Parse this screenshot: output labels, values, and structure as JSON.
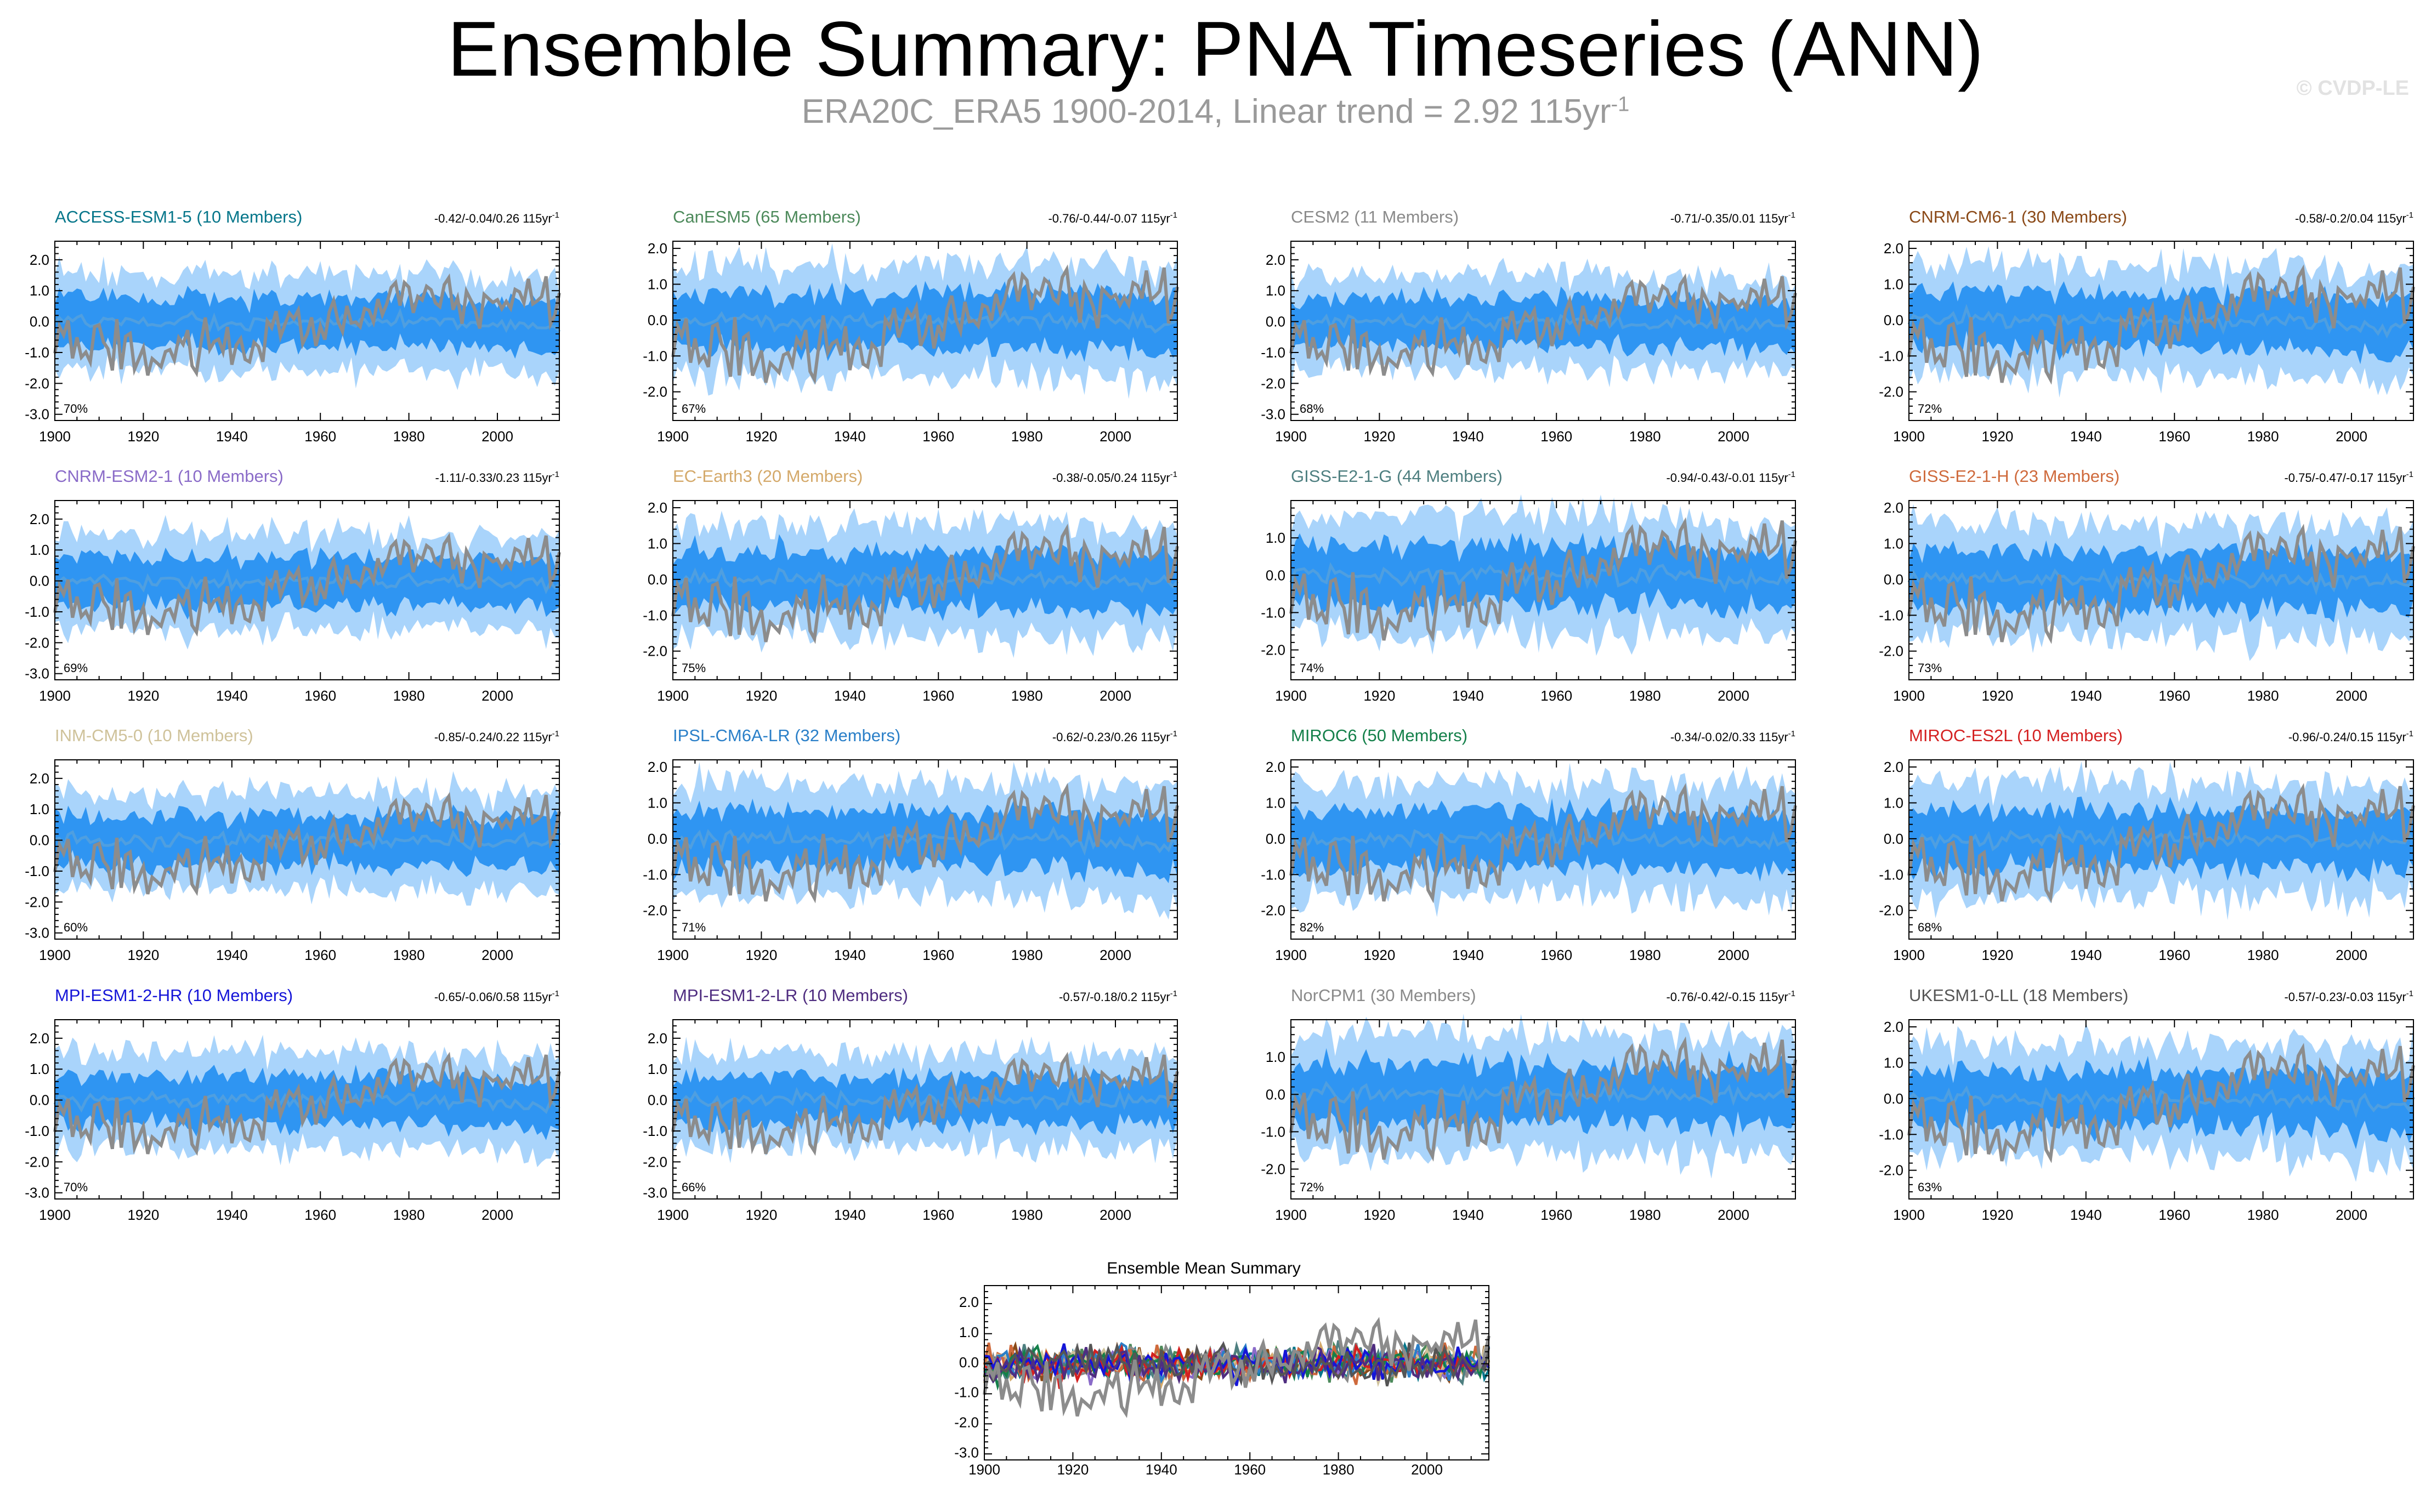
{
  "title": "Ensemble Summary: PNA Timeseries (ANN)",
  "subtitle": {
    "text": "ERA20C_ERA5 1900-2014, Linear trend = 2.92 115yr",
    "sup": "-1"
  },
  "watermark": "© CVDP-LE",
  "colors": {
    "band_outer": "#a9d4fb",
    "band_inner": "#2f95f2",
    "mean": "#4f9fe0",
    "obs": "#8c8c8c"
  },
  "chart_data": {
    "type": "line",
    "x_range": [
      1900,
      2014
    ],
    "x_ticks": [
      1900,
      1920,
      1940,
      1960,
      1980,
      2000
    ],
    "panels": [
      {
        "model": "ACCESS-ESM1-5 (10 Members)",
        "color": "#06768a",
        "trend": "-0.42/-0.04/0.26 115yr",
        "pct": "70%",
        "ylim": [
          -3.2,
          2.6
        ],
        "yticks": [
          "2.0",
          "1.0",
          "0.0",
          "-1.0",
          "-2.0",
          "-3.0"
        ]
      },
      {
        "model": "CanESM5 (65 Members)",
        "color": "#4d8a5b",
        "trend": "-0.76/-0.44/-0.07 115yr",
        "pct": "67%",
        "ylim": [
          -2.8,
          2.2
        ],
        "yticks": [
          "2.0",
          "1.0",
          "0.0",
          "-1.0",
          "-2.0"
        ]
      },
      {
        "model": "CESM2 (11 Members)",
        "color": "#8a8a8a",
        "trend": "-0.71/-0.35/0.01 115yr",
        "pct": "68%",
        "ylim": [
          -3.2,
          2.6
        ],
        "yticks": [
          "2.0",
          "1.0",
          "0.0",
          "-1.0",
          "-2.0",
          "-3.0"
        ]
      },
      {
        "model": "CNRM-CM6-1 (30 Members)",
        "color": "#8b4a18",
        "trend": "-0.58/-0.2/0.04 115yr",
        "pct": "72%",
        "ylim": [
          -2.8,
          2.2
        ],
        "yticks": [
          "2.0",
          "1.0",
          "0.0",
          "-1.0",
          "-2.0"
        ]
      },
      {
        "model": "CNRM-ESM2-1 (10 Members)",
        "color": "#8a6bc8",
        "trend": "-1.11/-0.33/0.23 115yr",
        "pct": "69%",
        "ylim": [
          -3.2,
          2.6
        ],
        "yticks": [
          "2.0",
          "1.0",
          "0.0",
          "-1.0",
          "-2.0",
          "-3.0"
        ]
      },
      {
        "model": "EC-Earth3 (20 Members)",
        "color": "#d4a96a",
        "trend": "-0.38/-0.05/0.24 115yr",
        "pct": "75%",
        "ylim": [
          -2.8,
          2.2
        ],
        "yticks": [
          "2.0",
          "1.0",
          "0.0",
          "-1.0",
          "-2.0"
        ]
      },
      {
        "model": "GISS-E2-1-G (44 Members)",
        "color": "#4e7f80",
        "trend": "-0.94/-0.43/-0.01 115yr",
        "pct": "74%",
        "ylim": [
          -2.8,
          2.0
        ],
        "yticks": [
          "1.0",
          "0.0",
          "-1.0",
          "-2.0"
        ]
      },
      {
        "model": "GISS-E2-1-H (23 Members)",
        "color": "#cf6a3c",
        "trend": "-0.75/-0.47/-0.17 115yr",
        "pct": "73%",
        "ylim": [
          -2.8,
          2.2
        ],
        "yticks": [
          "2.0",
          "1.0",
          "0.0",
          "-1.0",
          "-2.0"
        ]
      },
      {
        "model": "INM-CM5-0 (10 Members)",
        "color": "#cfc29a",
        "trend": "-0.85/-0.24/0.22 115yr",
        "pct": "60%",
        "ylim": [
          -3.2,
          2.6
        ],
        "yticks": [
          "2.0",
          "1.0",
          "0.0",
          "-1.0",
          "-2.0",
          "-3.0"
        ]
      },
      {
        "model": "IPSL-CM6A-LR (32 Members)",
        "color": "#2a7fc8",
        "trend": "-0.62/-0.23/0.26 115yr",
        "pct": "71%",
        "ylim": [
          -2.8,
          2.2
        ],
        "yticks": [
          "2.0",
          "1.0",
          "0.0",
          "-1.0",
          "-2.0"
        ]
      },
      {
        "model": "MIROC6 (50 Members)",
        "color": "#14804a",
        "trend": "-0.34/-0.02/0.33 115yr",
        "pct": "82%",
        "ylim": [
          -2.8,
          2.2
        ],
        "yticks": [
          "2.0",
          "1.0",
          "0.0",
          "-1.0",
          "-2.0"
        ]
      },
      {
        "model": "MIROC-ES2L (10 Members)",
        "color": "#d42020",
        "trend": "-0.96/-0.24/0.15 115yr",
        "pct": "68%",
        "ylim": [
          -2.8,
          2.2
        ],
        "yticks": [
          "2.0",
          "1.0",
          "0.0",
          "-1.0",
          "-2.0"
        ]
      },
      {
        "model": "MPI-ESM1-2-HR (10 Members)",
        "color": "#1515d8",
        "trend": "-0.65/-0.06/0.58 115yr",
        "pct": "70%",
        "ylim": [
          -3.2,
          2.6
        ],
        "yticks": [
          "2.0",
          "1.0",
          "0.0",
          "-1.0",
          "-2.0",
          "-3.0"
        ]
      },
      {
        "model": "MPI-ESM1-2-LR (10 Members)",
        "color": "#4f2d80",
        "trend": "-0.57/-0.18/0.2 115yr",
        "pct": "66%",
        "ylim": [
          -3.2,
          2.6
        ],
        "yticks": [
          "2.0",
          "1.0",
          "0.0",
          "-1.0",
          "-2.0",
          "-3.0"
        ]
      },
      {
        "model": "NorCPM1 (30 Members)",
        "color": "#8a8a8a",
        "trend": "-0.76/-0.42/-0.15 115yr",
        "pct": "72%",
        "ylim": [
          -2.8,
          2.0
        ],
        "yticks": [
          "1.0",
          "0.0",
          "-1.0",
          "-2.0"
        ]
      },
      {
        "model": "UKESM1-0-LL (18 Members)",
        "color": "#555555",
        "trend": "-0.57/-0.23/-0.03 115yr",
        "pct": "63%",
        "ylim": [
          -2.8,
          2.2
        ],
        "yticks": [
          "2.0",
          "1.0",
          "0.0",
          "-1.0",
          "-2.0"
        ]
      }
    ],
    "summary": {
      "title": "Ensemble Mean Summary",
      "ylim": [
        -3.2,
        2.6
      ],
      "yticks": [
        "2.0",
        "1.0",
        "0.0",
        "-1.0",
        "-2.0",
        "-3.0"
      ],
      "line_colors": [
        "#06768a",
        "#4d8a5b",
        "#8a8a8a",
        "#8b4a18",
        "#8a6bc8",
        "#d4a96a",
        "#4e7f80",
        "#cf6a3c",
        "#cfc29a",
        "#2a7fc8",
        "#14804a",
        "#d42020",
        "#1515d8",
        "#4f2d80",
        "#555555"
      ]
    }
  }
}
